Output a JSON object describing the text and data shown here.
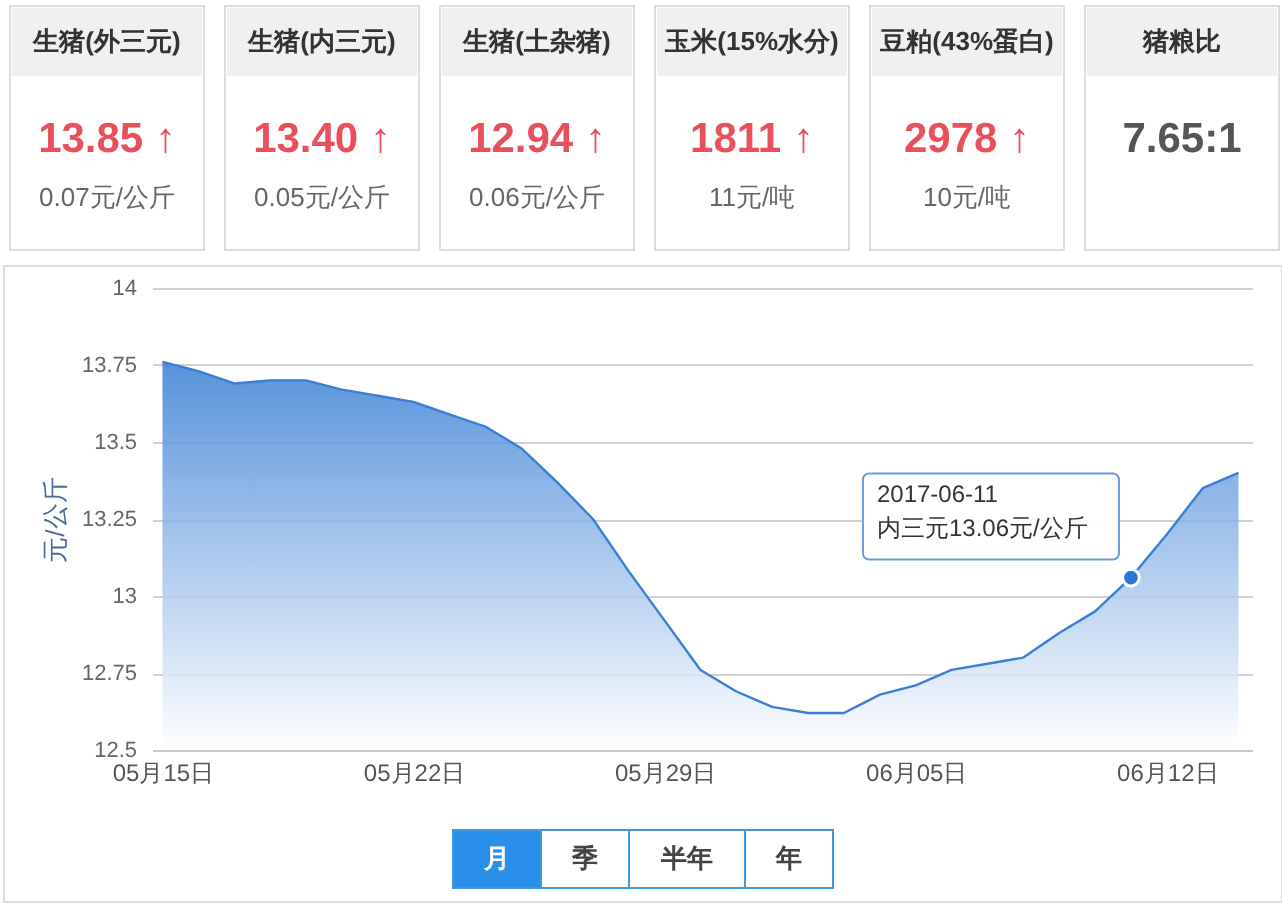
{
  "chart_data": [
    {
      "type": "other",
      "categories": [
        "生猪(外三元)",
        "生猪(内三元)",
        "生猪(土杂猪)",
        "玉米(15%水分)",
        "豆粕(43%蛋白)",
        "猪粮比"
      ],
      "annotations": [
        "13.85 ↑",
        "13.40 ↑",
        "12.94 ↑",
        "1811 ↑",
        "2978 ↑",
        "7.65:1",
        "0.07元/公斤",
        "0.05元/公斤",
        "0.06元/公斤",
        "11元/吨",
        "10元/吨"
      ]
    },
    {
      "type": "area",
      "ylabel": "元/公斤",
      "x": [
        "2017-05-15",
        "2017-05-16",
        "2017-05-17",
        "2017-05-18",
        "2017-05-19",
        "2017-05-20",
        "2017-05-21",
        "2017-05-22",
        "2017-05-23",
        "2017-05-24",
        "2017-05-25",
        "2017-05-26",
        "2017-05-27",
        "2017-05-28",
        "2017-05-29",
        "2017-05-30",
        "2017-05-31",
        "2017-06-01",
        "2017-06-02",
        "2017-06-03",
        "2017-06-04",
        "2017-06-05",
        "2017-06-06",
        "2017-06-07",
        "2017-06-08",
        "2017-06-09",
        "2017-06-10",
        "2017-06-11",
        "2017-06-12",
        "2017-06-13",
        "2017-06-14"
      ],
      "series": [
        {
          "color": "#3a7fd5",
          "values": [
            13.76,
            13.73,
            13.69,
            13.7,
            13.7,
            13.67,
            13.65,
            13.63,
            13.59,
            13.55,
            13.48,
            13.37,
            13.25,
            13.08,
            12.92,
            12.76,
            12.69,
            12.64,
            12.62,
            12.62,
            12.68,
            12.71,
            12.76,
            12.78,
            12.8,
            12.88,
            12.95,
            13.06,
            13.2,
            13.35,
            13.4
          ]
        },
        {
          "type": "scatter",
          "x": [
            "2017-06-11"
          ],
          "color": "#2a78d6",
          "values": [
            13.06
          ]
        }
      ],
      "xlim": [
        "2017-05-14T17:00",
        "2017-06-14T09:00"
      ],
      "ylim": [
        12.5,
        14
      ],
      "xticks": [
        {
          "value": "2017-05-15",
          "label": "05月15日"
        },
        {
          "value": "2017-05-22",
          "label": "05月22日"
        },
        {
          "value": "2017-05-29",
          "label": "05月29日"
        },
        {
          "value": "2017-06-05",
          "label": "06月05日"
        },
        {
          "value": "2017-06-12",
          "label": "06月12日"
        }
      ],
      "yticks": [
        12.5,
        12.75,
        13,
        13.25,
        13.5,
        13.75,
        14
      ],
      "grid": "y",
      "annotations": [
        {
          "text": "2017-06-11\n内三元13.06元/公斤",
          "x": "2017-06-11",
          "y": 13.06
        },
        "月",
        "季",
        "半年",
        "年"
      ]
    }
  ]
}
